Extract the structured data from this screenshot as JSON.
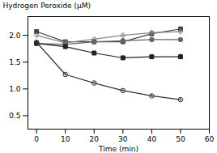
{
  "chart_data": {
    "type": "line",
    "x": [
      0,
      10,
      20,
      30,
      40,
      50
    ],
    "series": [
      {
        "color": "#444444",
        "marker": "square",
        "values": [
          2.07,
          1.88,
          1.88,
          1.88,
          2.03,
          2.12
        ],
        "yerr": [
          0.04,
          0.03,
          0.04,
          0.04,
          0.05,
          0.04
        ]
      },
      {
        "color": "#888888",
        "marker": "diamond-open",
        "values": [
          2.0,
          1.86,
          1.93,
          2.0,
          2.05,
          2.07
        ],
        "yerr": [
          0.04,
          0.03,
          0.03,
          0.04,
          0.05,
          0.04
        ]
      },
      {
        "color": "#666666",
        "marker": "circle",
        "values": [
          1.85,
          1.83,
          1.88,
          1.9,
          1.92,
          1.92
        ],
        "yerr": [
          0.03,
          0.03,
          0.03,
          0.03,
          0.03,
          0.03
        ]
      },
      {
        "color": "#222222",
        "marker": "square",
        "values": [
          1.85,
          1.79,
          1.67,
          1.58,
          1.6,
          1.6
        ],
        "yerr": [
          0.03,
          0.03,
          0.03,
          0.04,
          0.04,
          0.05
        ]
      },
      {
        "color": "#333333",
        "marker": "circle-open",
        "values": [
          1.87,
          1.27,
          1.11,
          0.97,
          0.87,
          0.8
        ],
        "yerr": [
          0.04,
          0.03,
          0.03,
          0.03,
          0.03,
          0.03
        ]
      }
    ],
    "xlabel": "Time (min)",
    "ylabel": "Hydrogen Peroxide (μM)",
    "xlim": [
      -3,
      60
    ],
    "ylim": [
      0.25,
      2.35
    ],
    "xticks": [
      0,
      10,
      20,
      30,
      40,
      50,
      60
    ],
    "yticks": [
      0.5,
      {
        "value": 1.0,
        "label": "1.0"
      },
      1.5,
      {
        "value": 2.0,
        "label": "2.0"
      }
    ],
    "grid": false
  }
}
